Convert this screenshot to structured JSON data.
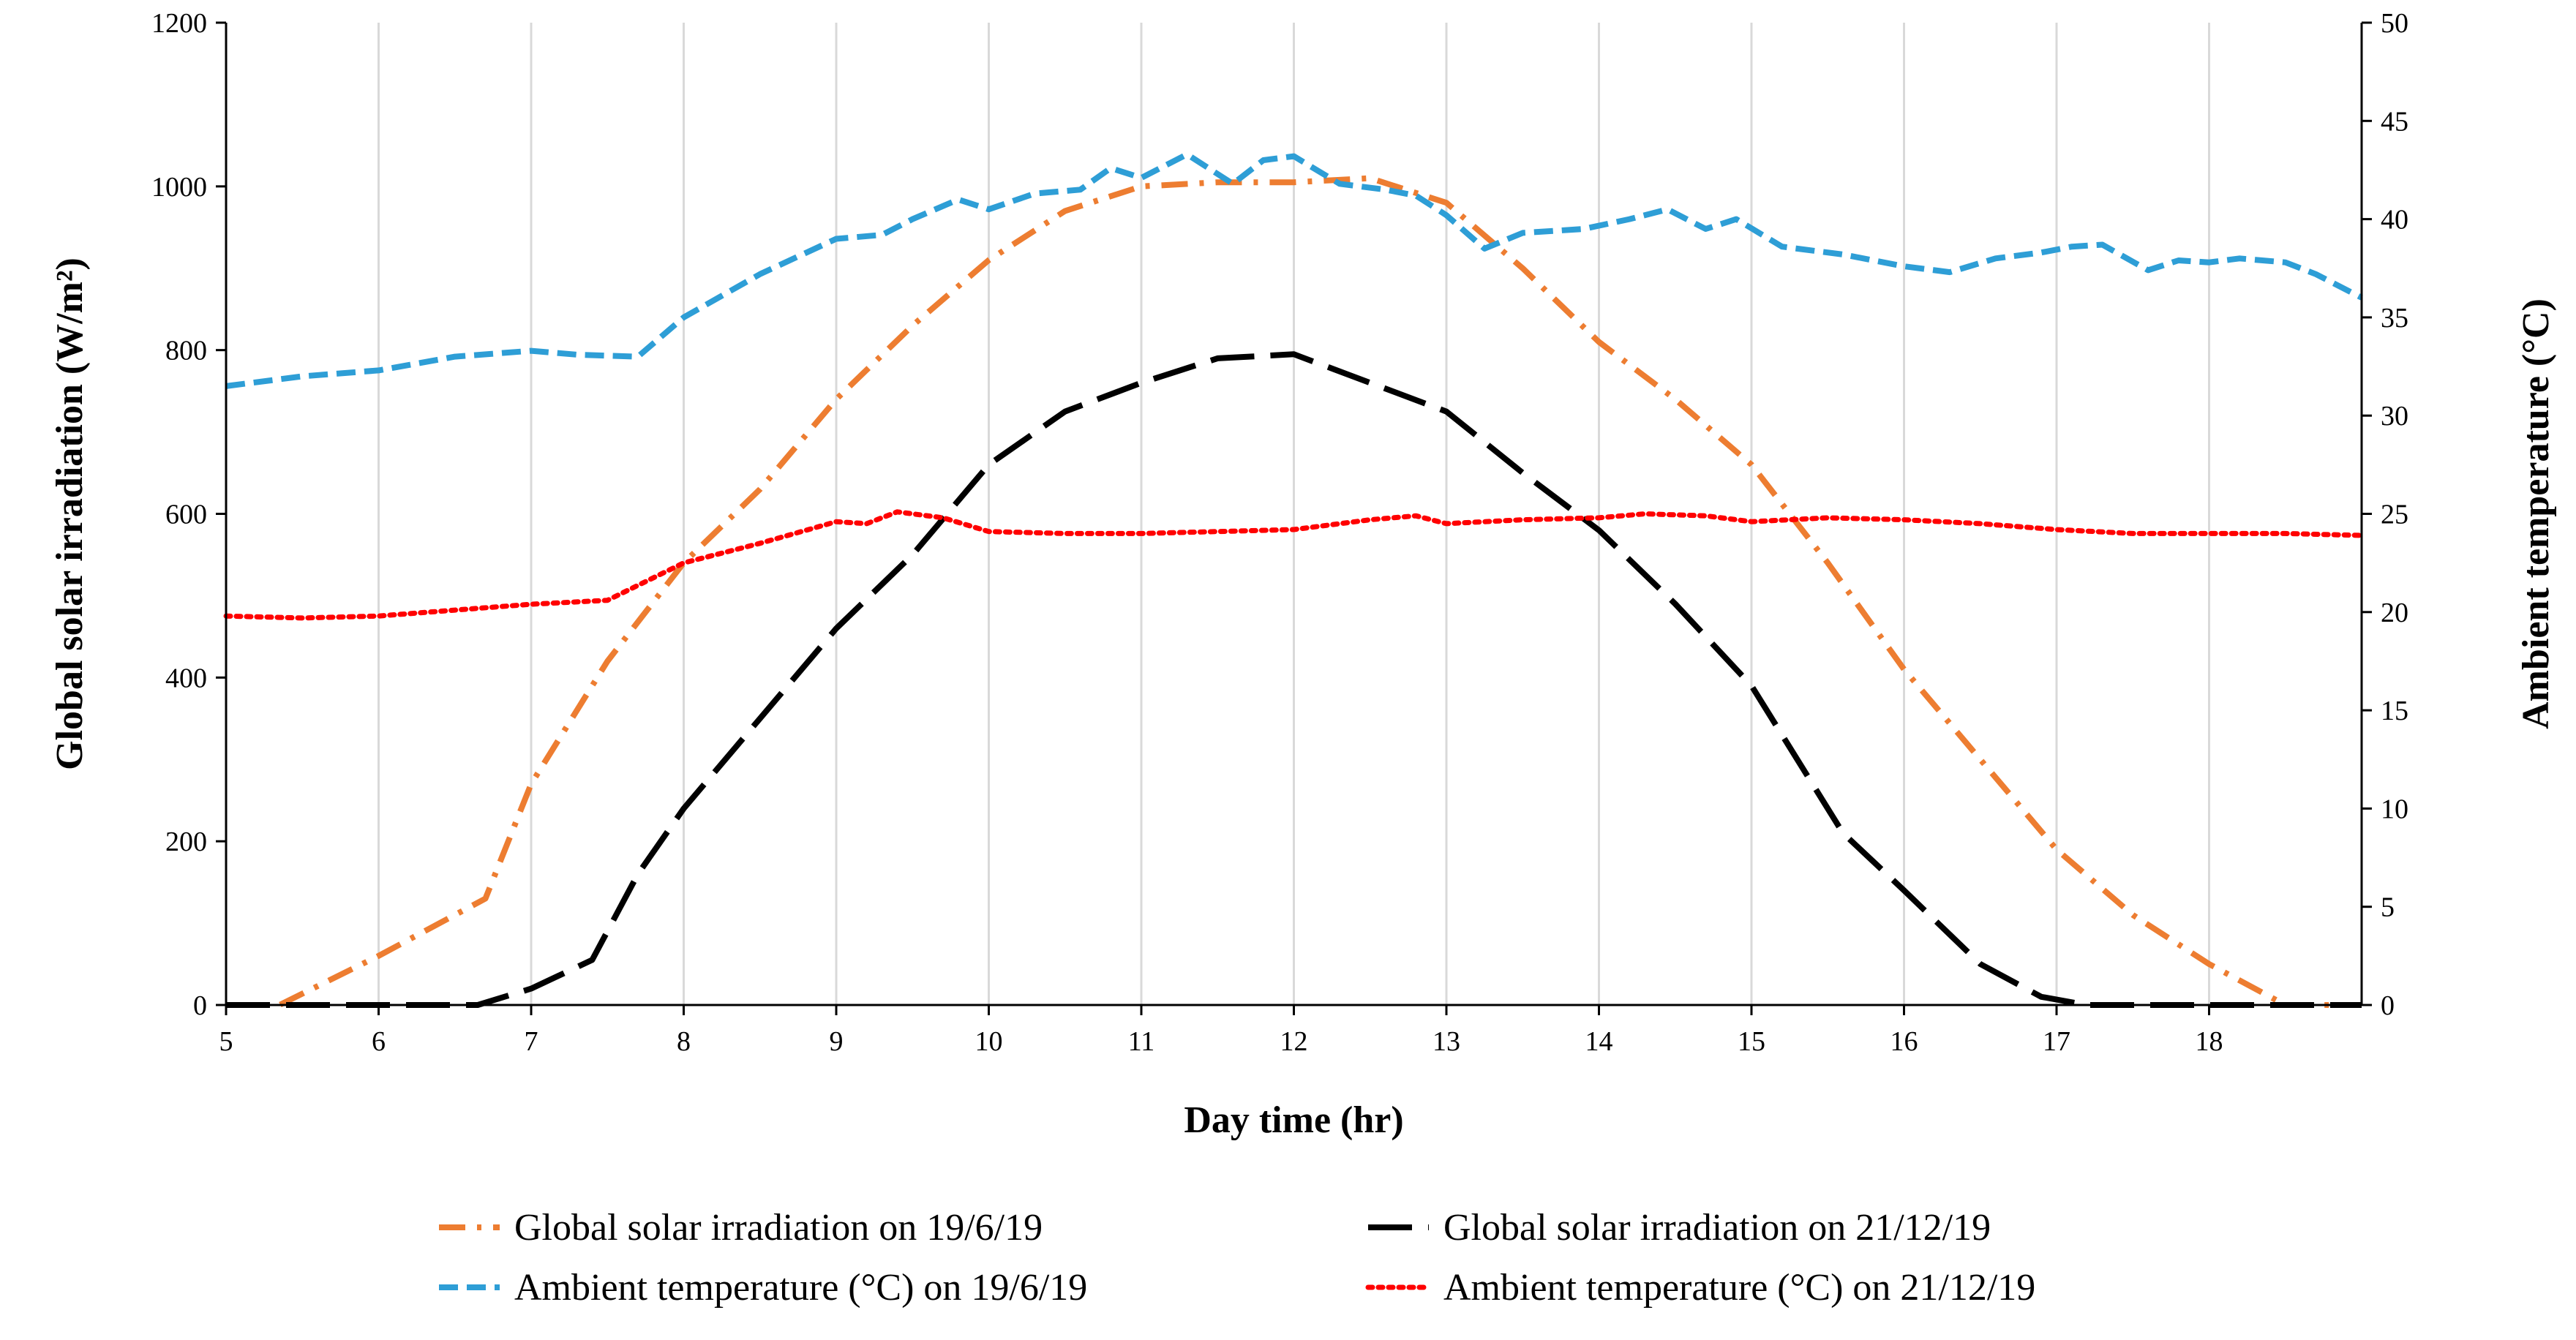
{
  "chart_data": {
    "type": "line",
    "xlabel": "Day time (hr)",
    "ylabel": "Global solar irradiation (W/m²)",
    "y2label": "Ambient temperature (°C)",
    "xlim": [
      5,
      19
    ],
    "ylim": [
      0,
      1200
    ],
    "y2lim": [
      0,
      50
    ],
    "x_ticks": [
      5,
      6,
      7,
      8,
      9,
      10,
      11,
      12,
      13,
      14,
      15,
      16,
      17,
      18
    ],
    "y_ticks": [
      0,
      200,
      400,
      600,
      800,
      1000,
      1200
    ],
    "y2_ticks": [
      0,
      5,
      10,
      15,
      20,
      25,
      30,
      35,
      40,
      45,
      50
    ],
    "grid": "vertical",
    "legend_position": "bottom",
    "series": [
      {
        "name": "Global solar irradiation on 19/6/19",
        "axis": "left",
        "color": "#ED7D31",
        "style": "dash-dot",
        "x": [
          5,
          5.35,
          6,
          6.7,
          7,
          7.5,
          8,
          8.5,
          9,
          9.5,
          10,
          10.5,
          11,
          11.5,
          12,
          12.5,
          13,
          13.5,
          14,
          14.5,
          15,
          15.5,
          16,
          16.5,
          17,
          17.5,
          18,
          18.5,
          19
        ],
        "values": [
          0,
          0,
          60,
          130,
          270,
          420,
          540,
          630,
          740,
          830,
          910,
          970,
          1000,
          1005,
          1005,
          1010,
          980,
          900,
          810,
          740,
          660,
          540,
          410,
          300,
          190,
          110,
          50,
          0,
          0
        ]
      },
      {
        "name": "Global solar irradiation on 21/12/19",
        "axis": "left",
        "color": "#000000",
        "style": "long-dash",
        "x": [
          5,
          6,
          6.65,
          7,
          7.4,
          7.7,
          8,
          8.5,
          9,
          9.5,
          10,
          10.5,
          11,
          11.5,
          12,
          12.5,
          13,
          13.5,
          14,
          14.5,
          15,
          15.6,
          16,
          16.5,
          16.9,
          17.2,
          18,
          19
        ],
        "values": [
          0,
          0,
          0,
          20,
          55,
          160,
          240,
          350,
          460,
          550,
          660,
          725,
          760,
          790,
          795,
          760,
          725,
          650,
          580,
          490,
          390,
          210,
          140,
          50,
          10,
          0,
          0,
          0
        ]
      },
      {
        "name": "Ambient temperature (°C) on 19/6/19",
        "axis": "right",
        "color": "#2E9ED6",
        "style": "dash",
        "x": [
          5,
          5.5,
          6,
          6.5,
          7,
          7.3,
          7.7,
          8,
          8.5,
          9,
          9.3,
          9.5,
          9.8,
          10,
          10.3,
          10.6,
          10.8,
          11,
          11.3,
          11.6,
          11.8,
          12,
          12.3,
          12.6,
          12.8,
          13,
          13.25,
          13.5,
          13.9,
          14.2,
          14.45,
          14.7,
          14.9,
          15.2,
          15.6,
          16,
          16.3,
          16.6,
          16.9,
          17.1,
          17.3,
          17.6,
          17.8,
          18,
          18.2,
          18.5,
          18.7,
          19
        ],
        "values": [
          31.5,
          32,
          32.3,
          33,
          33.3,
          33.1,
          33,
          35,
          37.2,
          39,
          39.2,
          40,
          41,
          40.5,
          41.3,
          41.5,
          42.6,
          42.1,
          43.3,
          41.8,
          43,
          43.2,
          41.8,
          41.5,
          41.2,
          40.2,
          38.5,
          39.3,
          39.5,
          40,
          40.5,
          39.5,
          40,
          38.6,
          38.2,
          37.6,
          37.3,
          38,
          38.3,
          38.6,
          38.7,
          37.4,
          37.9,
          37.8,
          38,
          37.8,
          37.2,
          36
        ]
      },
      {
        "name": "Ambient temperature (°C) on 21/12/19",
        "axis": "right",
        "color": "#FF0000",
        "style": "dot",
        "x": [
          5,
          5.5,
          6,
          6.5,
          7,
          7.5,
          8,
          8.5,
          9,
          9.2,
          9.4,
          9.7,
          10,
          10.5,
          11,
          11.5,
          12,
          12.5,
          12.8,
          13,
          13.5,
          14,
          14.3,
          14.7,
          15,
          15.5,
          16,
          16.5,
          17,
          17.5,
          18,
          18.5,
          19
        ],
        "values": [
          19.8,
          19.7,
          19.8,
          20.1,
          20.4,
          20.6,
          22.5,
          23.5,
          24.6,
          24.5,
          25.1,
          24.8,
          24.1,
          24,
          24,
          24.1,
          24.2,
          24.7,
          24.9,
          24.5,
          24.7,
          24.8,
          25,
          24.9,
          24.6,
          24.8,
          24.7,
          24.5,
          24.2,
          24,
          24,
          24,
          23.9
        ]
      }
    ]
  }
}
